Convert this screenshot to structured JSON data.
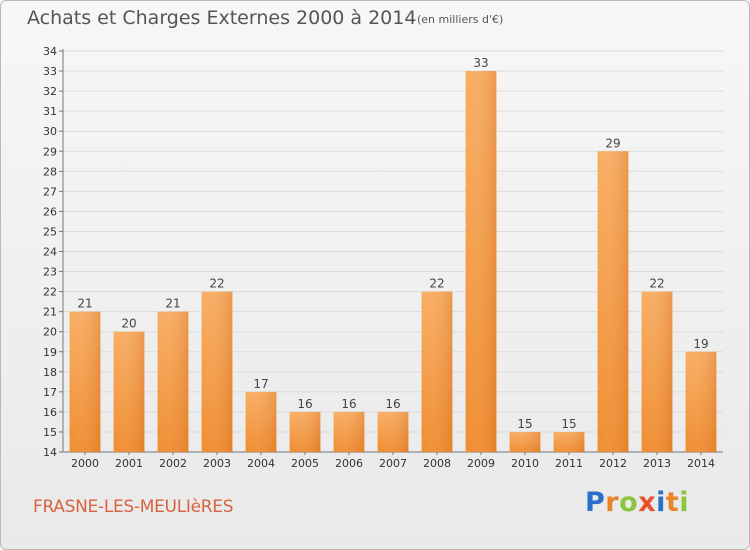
{
  "chart_data": {
    "type": "bar",
    "title": "Achats et Charges Externes 2000 à 2014",
    "subtitle": "(en milliers d'€)",
    "xlabel": "",
    "ylabel": "",
    "categories": [
      "2000",
      "2001",
      "2002",
      "2003",
      "2004",
      "2005",
      "2006",
      "2007",
      "2008",
      "2009",
      "2010",
      "2011",
      "2012",
      "2013",
      "2014"
    ],
    "values": [
      21,
      20,
      21,
      22,
      17,
      16,
      16,
      16,
      22,
      33,
      15,
      15,
      29,
      22,
      19
    ],
    "ylim": [
      14,
      34
    ],
    "yticks": [
      14,
      15,
      16,
      17,
      18,
      19,
      20,
      21,
      22,
      23,
      24,
      25,
      26,
      27,
      28,
      29,
      30,
      31,
      32,
      33,
      34
    ],
    "grid": true,
    "legend": "none",
    "bar_color": "#f08c2e",
    "bar_color_light": "#f9ad61"
  },
  "footer": {
    "commune": "FRASNE-LES-MEULIèRES",
    "logo_letters": [
      "P",
      "r",
      "o",
      "x",
      "i",
      "t",
      "i"
    ],
    "logo_colors": [
      "#2a6fc9",
      "#e8842a",
      "#8cc63f",
      "#e8522a",
      "#2a6fc9",
      "#e8842a",
      "#8cc63f"
    ]
  }
}
